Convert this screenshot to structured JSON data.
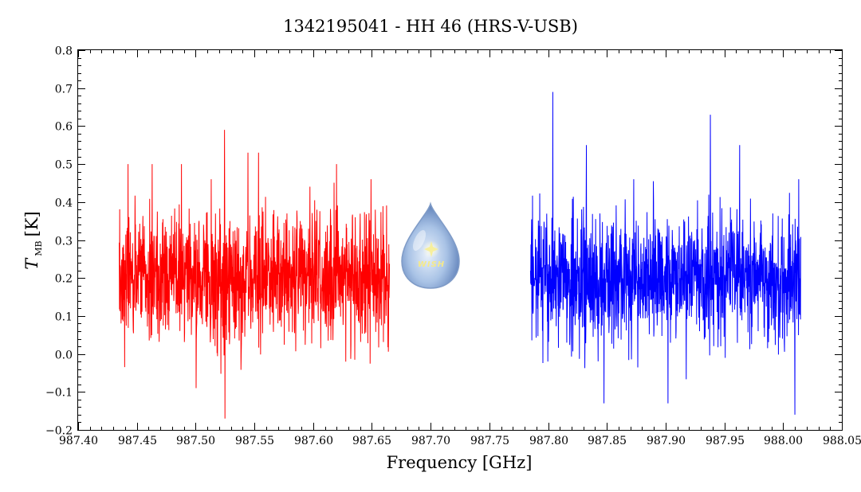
{
  "chart_data": {
    "type": "line",
    "title": "1342195041 - HH 46 (HRS-V-USB)",
    "xlabel": "Frequency [GHz]",
    "ylabel_main": "T",
    "ylabel_sub": "MB",
    "ylabel_unit": "[K]",
    "xlim": [
      987.4,
      988.05
    ],
    "ylim": [
      -0.2,
      0.8
    ],
    "xticks": [
      "987.40",
      "987.45",
      "987.50",
      "987.55",
      "987.60",
      "987.65",
      "987.70",
      "987.75",
      "987.80",
      "987.85",
      "987.90",
      "987.95",
      "988.00",
      "988.05"
    ],
    "yticks": [
      "−0.2",
      "−0.1",
      "0.0",
      "0.1",
      "0.2",
      "0.3",
      "0.4",
      "0.5",
      "0.6",
      "0.7",
      "0.8"
    ],
    "grid": false,
    "series": [
      {
        "color": "#ff0000",
        "x_range": [
          987.435,
          987.665
        ],
        "mean": 0.2,
        "noise_sigma": 0.1,
        "peaks": [
          {
            "x": 987.5245,
            "y": 0.59
          },
          {
            "x": 987.525,
            "y": -0.17
          },
          {
            "x": 987.5445,
            "y": 0.53
          },
          {
            "x": 987.5535,
            "y": 0.53
          },
          {
            "x": 987.463,
            "y": 0.5
          },
          {
            "x": 987.4425,
            "y": 0.5
          },
          {
            "x": 987.62,
            "y": 0.5
          },
          {
            "x": 987.488,
            "y": 0.5
          },
          {
            "x": 987.5005,
            "y": -0.09
          }
        ]
      },
      {
        "color": "#0000ff",
        "x_range": [
          987.785,
          988.015
        ],
        "mean": 0.2,
        "noise_sigma": 0.1,
        "peaks": [
          {
            "x": 987.804,
            "y": 0.69
          },
          {
            "x": 987.938,
            "y": 0.63
          },
          {
            "x": 987.8325,
            "y": 0.55
          },
          {
            "x": 987.963,
            "y": 0.55
          },
          {
            "x": 988.01,
            "y": -0.16
          },
          {
            "x": 987.902,
            "y": -0.13
          },
          {
            "x": 987.8475,
            "y": -0.13
          }
        ]
      }
    ]
  },
  "logo": {
    "name": "wish-logo",
    "label": "WISH",
    "colors": [
      "#c9dcf3",
      "#6f93c9",
      "#f5e98a"
    ]
  }
}
